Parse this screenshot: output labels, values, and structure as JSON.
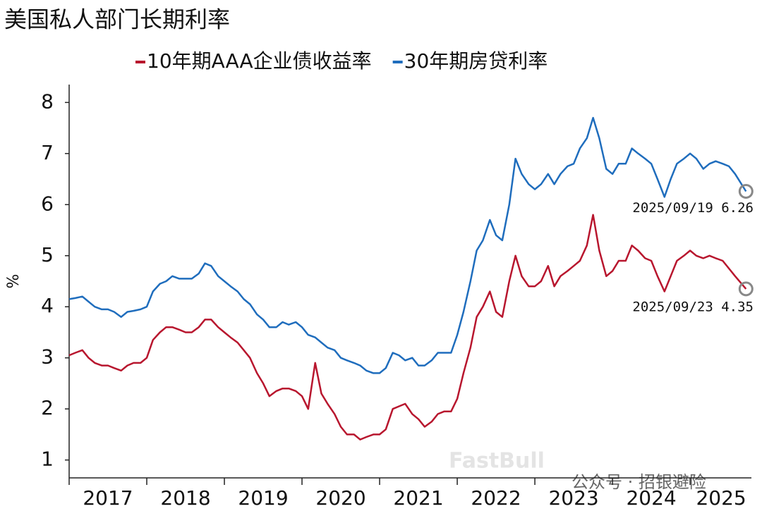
{
  "chart_data": {
    "type": "line",
    "title": "美国私人部门长期利率",
    "ylabel": "%",
    "legend": "top",
    "grid": false,
    "xlim": [
      2017,
      2025.79
    ],
    "xticks": [
      {
        "value": 2017.5,
        "label": "2017"
      },
      {
        "value": 2018.5,
        "label": "2018"
      },
      {
        "value": 2019.5,
        "label": "2019"
      },
      {
        "value": 2020.5,
        "label": "2020"
      },
      {
        "value": 2021.5,
        "label": "2021"
      },
      {
        "value": 2022.5,
        "label": "2022"
      },
      {
        "value": 2023.5,
        "label": "2023"
      },
      {
        "value": 2024.5,
        "label": "2024"
      },
      {
        "value": 2025.4,
        "label": "2025"
      }
    ],
    "ylim": [
      0.65,
      8.35
    ],
    "yticks": [
      1,
      2,
      3,
      4,
      5,
      6,
      7,
      8
    ],
    "x": [
      2017,
      2017.08,
      2017.17,
      2017.25,
      2017.33,
      2017.42,
      2017.5,
      2017.58,
      2017.67,
      2017.75,
      2017.83,
      2017.92,
      2018,
      2018.08,
      2018.17,
      2018.25,
      2018.33,
      2018.42,
      2018.5,
      2018.58,
      2018.67,
      2018.75,
      2018.83,
      2018.92,
      2019,
      2019.08,
      2019.17,
      2019.25,
      2019.33,
      2019.42,
      2019.5,
      2019.58,
      2019.67,
      2019.75,
      2019.83,
      2019.92,
      2020,
      2020.08,
      2020.17,
      2020.25,
      2020.33,
      2020.42,
      2020.5,
      2020.58,
      2020.67,
      2020.75,
      2020.83,
      2020.92,
      2021,
      2021.08,
      2021.17,
      2021.25,
      2021.33,
      2021.42,
      2021.5,
      2021.58,
      2021.67,
      2021.75,
      2021.83,
      2021.92,
      2022,
      2022.08,
      2022.17,
      2022.25,
      2022.33,
      2022.42,
      2022.5,
      2022.58,
      2022.67,
      2022.75,
      2022.83,
      2022.92,
      2023,
      2023.08,
      2023.17,
      2023.25,
      2023.33,
      2023.42,
      2023.5,
      2023.58,
      2023.67,
      2023.75,
      2023.83,
      2023.92,
      2024,
      2024.08,
      2024.17,
      2024.25,
      2024.33,
      2024.42,
      2024.5,
      2024.58,
      2024.67,
      2024.75,
      2024.83,
      2024.92,
      2025,
      2025.08,
      2025.17,
      2025.25,
      2025.33,
      2025.42,
      2025.5,
      2025.58,
      2025.72
    ],
    "series": [
      {
        "name": "10年期AAA企业债收益率",
        "color": "#b8162e",
        "values": [
          3.05,
          3.1,
          3.15,
          3.0,
          2.9,
          2.85,
          2.85,
          2.8,
          2.75,
          2.85,
          2.9,
          2.9,
          3.0,
          3.35,
          3.5,
          3.6,
          3.6,
          3.55,
          3.5,
          3.5,
          3.6,
          3.75,
          3.75,
          3.6,
          3.5,
          3.4,
          3.3,
          3.15,
          3.0,
          2.7,
          2.5,
          2.25,
          2.35,
          2.4,
          2.4,
          2.35,
          2.25,
          2.0,
          2.9,
          2.3,
          2.1,
          1.9,
          1.65,
          1.5,
          1.5,
          1.4,
          1.45,
          1.5,
          1.5,
          1.6,
          2.0,
          2.05,
          2.1,
          1.9,
          1.8,
          1.65,
          1.75,
          1.9,
          1.95,
          1.95,
          2.2,
          2.7,
          3.2,
          3.8,
          4.0,
          4.3,
          3.9,
          3.8,
          4.5,
          5.0,
          4.6,
          4.4,
          4.4,
          4.5,
          4.8,
          4.4,
          4.6,
          4.7,
          4.8,
          4.9,
          5.2,
          5.8,
          5.1,
          4.6,
          4.7,
          4.9,
          4.9,
          5.2,
          5.1,
          4.95,
          4.9,
          4.6,
          4.3,
          4.6,
          4.9,
          5.0,
          5.1,
          5.0,
          4.95,
          5.0,
          4.95,
          4.9,
          4.75,
          4.6,
          4.35
        ]
      },
      {
        "name": "30年期房贷利率",
        "color": "#1f6dbd",
        "values": [
          4.15,
          4.17,
          4.2,
          4.1,
          4.0,
          3.95,
          3.95,
          3.9,
          3.8,
          3.9,
          3.92,
          3.95,
          4.0,
          4.3,
          4.45,
          4.5,
          4.6,
          4.55,
          4.55,
          4.55,
          4.65,
          4.85,
          4.8,
          4.6,
          4.5,
          4.4,
          4.3,
          4.15,
          4.05,
          3.85,
          3.75,
          3.6,
          3.6,
          3.7,
          3.65,
          3.7,
          3.6,
          3.45,
          3.4,
          3.3,
          3.2,
          3.15,
          3.0,
          2.95,
          2.9,
          2.85,
          2.75,
          2.7,
          2.7,
          2.8,
          3.1,
          3.05,
          2.95,
          3.0,
          2.85,
          2.85,
          2.95,
          3.1,
          3.1,
          3.1,
          3.45,
          3.9,
          4.5,
          5.1,
          5.3,
          5.7,
          5.4,
          5.3,
          6.0,
          6.9,
          6.6,
          6.4,
          6.3,
          6.4,
          6.6,
          6.4,
          6.6,
          6.75,
          6.8,
          7.1,
          7.3,
          7.7,
          7.3,
          6.7,
          6.6,
          6.8,
          6.8,
          7.1,
          7.0,
          6.9,
          6.8,
          6.5,
          6.15,
          6.5,
          6.8,
          6.9,
          7.0,
          6.9,
          6.7,
          6.8,
          6.85,
          6.8,
          6.75,
          6.6,
          6.26
        ]
      }
    ],
    "annotations": [
      "2025/09/19 6.26",
      "2025/09/23 4.35"
    ],
    "watermark": [
      "FastBull",
      "公众号 · 招银避险"
    ]
  }
}
